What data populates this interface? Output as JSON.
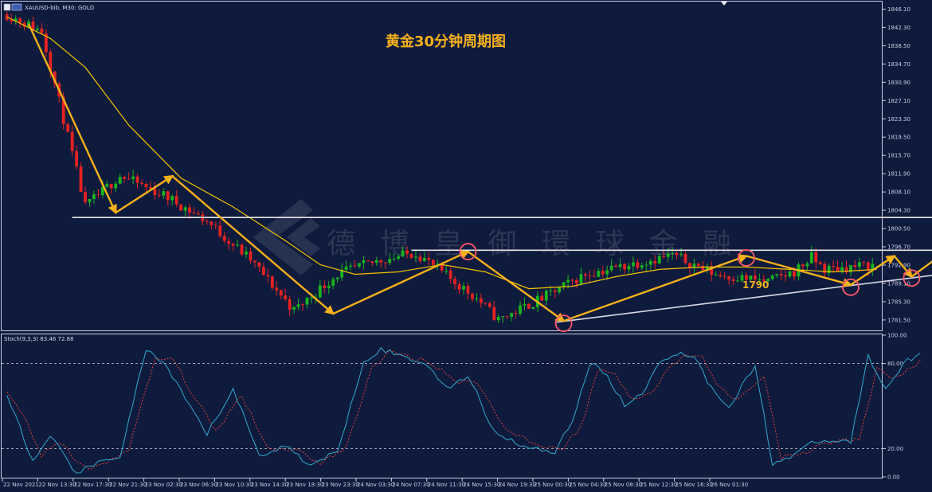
{
  "header": {
    "symbol": "XAUUSD-bib, M30:  GOLD",
    "indicator": "Stoch(9,3,3) 83.46 72.88"
  },
  "watermark": "德 博 皇 御 環 球 金 融",
  "annotation": "1790",
  "colors": {
    "background": "#0f1b3d",
    "bull": "#19b41e",
    "bear": "#e52222",
    "ma": "#f2c200",
    "arrow": "#f5b11a",
    "level": "#e6e6e6",
    "stoch_main": "#2fa9c9",
    "stoch_signal": "#e0403a",
    "circle": "#ff5a6a"
  },
  "chart_data": [
    {
      "type": "candlestick",
      "title": "黄金30分钟周期图",
      "symbol": "XAUUSD",
      "timeframe": "M30",
      "y_ticks": [
        1846.1,
        1842.3,
        1838.5,
        1834.7,
        1830.9,
        1827.1,
        1823.3,
        1819.5,
        1815.7,
        1811.9,
        1808.1,
        1804.3,
        1800.5,
        1796.7,
        1792.9,
        1789.1,
        1785.3,
        1781.5
      ],
      "ylim": [
        1779.5,
        1847.5
      ],
      "x_labels": [
        "22 Nov 2021",
        "22 Nov 13:30",
        "22 Nov 17:30",
        "22 Nov 21:30",
        "23 Nov 02:30",
        "23 Nov 06:30",
        "23 Nov 10:30",
        "23 Nov 14:30",
        "23 Nov 18:30",
        "23 Nov 23:30",
        "24 Nov 03:30",
        "24 Nov 07:30",
        "24 Nov 11:30",
        "24 Nov 15:30",
        "24 Nov 19:30",
        "25 Nov 00:30",
        "25 Nov 04:30",
        "25 Nov 08:30",
        "25 Nov 12:30",
        "25 Nov 16:30",
        "26 Nov 01:30"
      ],
      "bar_count": 200,
      "close_anchors": [
        [
          0,
          1845.0
        ],
        [
          8,
          1841.5
        ],
        [
          18,
          1805.0
        ],
        [
          26,
          1811.5
        ],
        [
          37,
          1807.0
        ],
        [
          46,
          1802.0
        ],
        [
          56,
          1794.0
        ],
        [
          66,
          1783.5
        ],
        [
          76,
          1791.0
        ],
        [
          86,
          1794.0
        ],
        [
          94,
          1795.5
        ],
        [
          108,
          1786.0
        ],
        [
          113,
          1781.5
        ],
        [
          123,
          1786.0
        ],
        [
          133,
          1791.0
        ],
        [
          153,
          1795.0
        ],
        [
          163,
          1791.0
        ],
        [
          175,
          1789.5
        ],
        [
          181,
          1791.5
        ],
        [
          185,
          1794.5
        ],
        [
          188,
          1792.0
        ],
        [
          200,
          1793.0
        ]
      ],
      "ma_series": [
        [
          0,
          1844.5
        ],
        [
          10,
          1840.0
        ],
        [
          18,
          1834.0
        ],
        [
          28,
          1822.0
        ],
        [
          40,
          1811.0
        ],
        [
          52,
          1805.0
        ],
        [
          64,
          1798.0
        ],
        [
          72,
          1793.0
        ],
        [
          80,
          1791.0
        ],
        [
          90,
          1791.5
        ],
        [
          100,
          1793.0
        ],
        [
          110,
          1791.5
        ],
        [
          120,
          1788.0
        ],
        [
          130,
          1788.5
        ],
        [
          140,
          1790.5
        ],
        [
          150,
          1792.0
        ],
        [
          160,
          1792.5
        ],
        [
          170,
          1792.5
        ],
        [
          180,
          1792.0
        ],
        [
          190,
          1791.5
        ],
        [
          200,
          1792.0
        ]
      ],
      "levels": [
        {
          "price": 1802.8,
          "from": 15,
          "to": 238
        },
        {
          "price": 1796.0,
          "from": 93,
          "to": 233
        }
      ],
      "trendline": [
        [
          126,
          1781.0
        ],
        [
          213,
          1790.8
        ]
      ],
      "zigzag": [
        [
          5,
          1843.0
        ],
        [
          25,
          1803.8
        ],
        [
          38,
          1811.4
        ],
        [
          75,
          1782.8
        ],
        [
          106,
          1795.7
        ],
        [
          128,
          1781.3
        ],
        [
          170,
          1794.8
        ],
        [
          194,
          1788.8
        ],
        [
          204,
          1794.8
        ],
        [
          208,
          1790.5
        ],
        [
          222,
          1799.8
        ]
      ],
      "circles": [
        [
          106,
          1795.7
        ],
        [
          128,
          1780.8
        ],
        [
          170,
          1794.4
        ],
        [
          194,
          1788.3
        ],
        [
          208,
          1790.2
        ]
      ]
    },
    {
      "type": "line",
      "title": "Stoch(9,3,3)",
      "main_value": 83.46,
      "signal_value": 72.88,
      "y_ticks": [
        100.0,
        80.0,
        20.0,
        0.0
      ],
      "levels": [
        80,
        20
      ],
      "ylim": [
        0,
        100
      ],
      "main_anchors": [
        [
          0,
          58
        ],
        [
          3,
          35
        ],
        [
          6,
          10
        ],
        [
          10,
          28
        ],
        [
          16,
          3
        ],
        [
          20,
          8
        ],
        [
          26,
          15
        ],
        [
          32,
          90
        ],
        [
          36,
          80
        ],
        [
          40,
          60
        ],
        [
          46,
          30
        ],
        [
          52,
          62
        ],
        [
          58,
          15
        ],
        [
          64,
          22
        ],
        [
          70,
          8
        ],
        [
          76,
          18
        ],
        [
          82,
          82
        ],
        [
          86,
          90
        ],
        [
          90,
          86
        ],
        [
          96,
          80
        ],
        [
          102,
          62
        ],
        [
          106,
          72
        ],
        [
          112,
          32
        ],
        [
          120,
          20
        ],
        [
          126,
          18
        ],
        [
          130,
          40
        ],
        [
          134,
          80
        ],
        [
          138,
          72
        ],
        [
          142,
          50
        ],
        [
          146,
          58
        ],
        [
          150,
          82
        ],
        [
          154,
          87
        ],
        [
          158,
          86
        ],
        [
          162,
          62
        ],
        [
          166,
          50
        ],
        [
          172,
          78
        ],
        [
          176,
          10
        ],
        [
          180,
          14
        ],
        [
          186,
          25
        ],
        [
          194,
          25
        ],
        [
          198,
          85
        ],
        [
          202,
          62
        ],
        [
          206,
          80
        ],
        [
          210,
          88
        ]
      ],
      "signal_anchors": [
        [
          0,
          60
        ],
        [
          4,
          42
        ],
        [
          8,
          15
        ],
        [
          12,
          24
        ],
        [
          18,
          6
        ],
        [
          22,
          8
        ],
        [
          28,
          20
        ],
        [
          34,
          82
        ],
        [
          38,
          84
        ],
        [
          42,
          62
        ],
        [
          48,
          32
        ],
        [
          54,
          58
        ],
        [
          60,
          20
        ],
        [
          66,
          20
        ],
        [
          72,
          10
        ],
        [
          78,
          20
        ],
        [
          84,
          78
        ],
        [
          88,
          88
        ],
        [
          92,
          85
        ],
        [
          98,
          80
        ],
        [
          104,
          66
        ],
        [
          108,
          68
        ],
        [
          114,
          36
        ],
        [
          122,
          22
        ],
        [
          128,
          20
        ],
        [
          132,
          36
        ],
        [
          136,
          76
        ],
        [
          140,
          72
        ],
        [
          144,
          54
        ],
        [
          148,
          58
        ],
        [
          152,
          78
        ],
        [
          156,
          86
        ],
        [
          160,
          84
        ],
        [
          164,
          62
        ],
        [
          168,
          54
        ],
        [
          174,
          72
        ],
        [
          178,
          14
        ],
        [
          182,
          15
        ],
        [
          188,
          24
        ],
        [
          196,
          26
        ],
        [
          200,
          76
        ],
        [
          204,
          70
        ],
        [
          208,
          76
        ],
        [
          210,
          82
        ]
      ]
    }
  ]
}
